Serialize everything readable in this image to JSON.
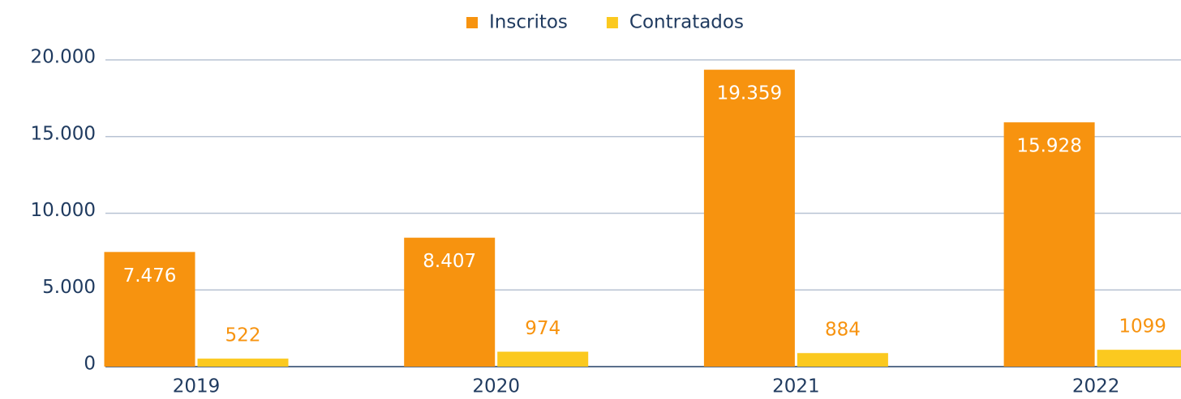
{
  "chart_data": {
    "type": "bar",
    "categories": [
      "2019",
      "2020",
      "2021",
      "2022"
    ],
    "series": [
      {
        "name": "Inscritos",
        "color": "#f7930f",
        "values": [
          7476,
          8407,
          19359,
          15928
        ],
        "value_labels": [
          "7.476",
          "8.407",
          "19.359",
          "15.928"
        ]
      },
      {
        "name": "Contratados",
        "color": "#fbc91f",
        "values": [
          522,
          974,
          884,
          1099
        ]
      }
    ],
    "ylim": [
      0,
      20000
    ],
    "yticks": [
      0,
      {
        "value": 5000,
        "label": "5.000"
      },
      {
        "value": 10000,
        "label": "10.000"
      },
      {
        "value": 15000,
        "label": "15.000"
      },
      {
        "value": 20000,
        "label": "20.000"
      }
    ],
    "grid": true,
    "legend": "top"
  }
}
